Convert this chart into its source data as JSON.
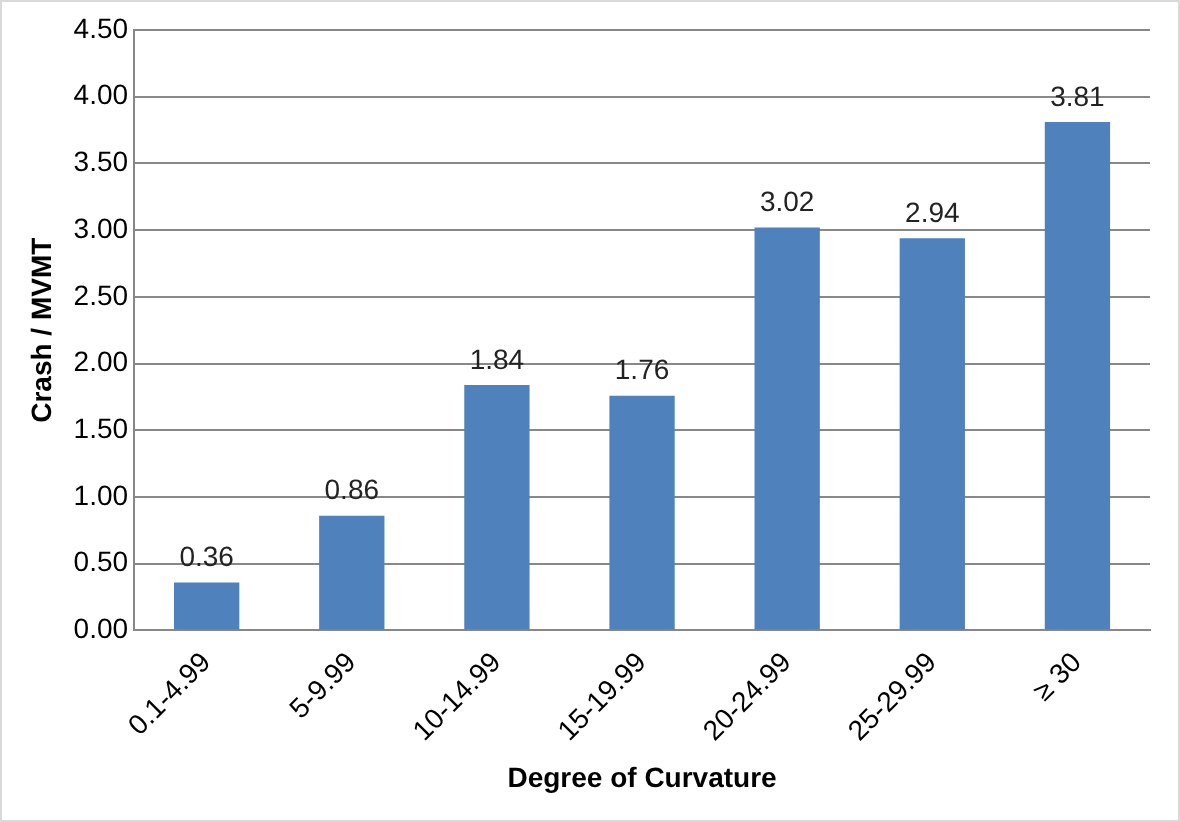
{
  "chart_data": {
    "type": "bar",
    "xlabel": "Degree of Curvature",
    "ylabel": "Crash / MVMT",
    "categories": [
      "0.1-4.99",
      "5-9.99",
      "10-14.99",
      "15-19.99",
      "20-24.99",
      "25-29.99",
      "≥ 30"
    ],
    "values": [
      0.36,
      0.86,
      1.84,
      1.76,
      3.02,
      2.94,
      3.81
    ],
    "color": "#4f81bd",
    "ylim": [
      0,
      4.5
    ],
    "yticks": [
      {
        "value": 0,
        "label": "0.00"
      },
      {
        "value": 0.5,
        "label": "0.50"
      },
      {
        "value": 1,
        "label": "1.00"
      },
      {
        "value": 1.5,
        "label": "1.50"
      },
      {
        "value": 2,
        "label": "2.00"
      },
      {
        "value": 2.5,
        "label": "2.50"
      },
      {
        "value": 3,
        "label": "3.00"
      },
      {
        "value": 3.5,
        "label": "3.50"
      },
      {
        "value": 4,
        "label": "4.00"
      },
      {
        "value": 4.5,
        "label": "4.50"
      }
    ],
    "grid": "y",
    "data_labels": true
  }
}
